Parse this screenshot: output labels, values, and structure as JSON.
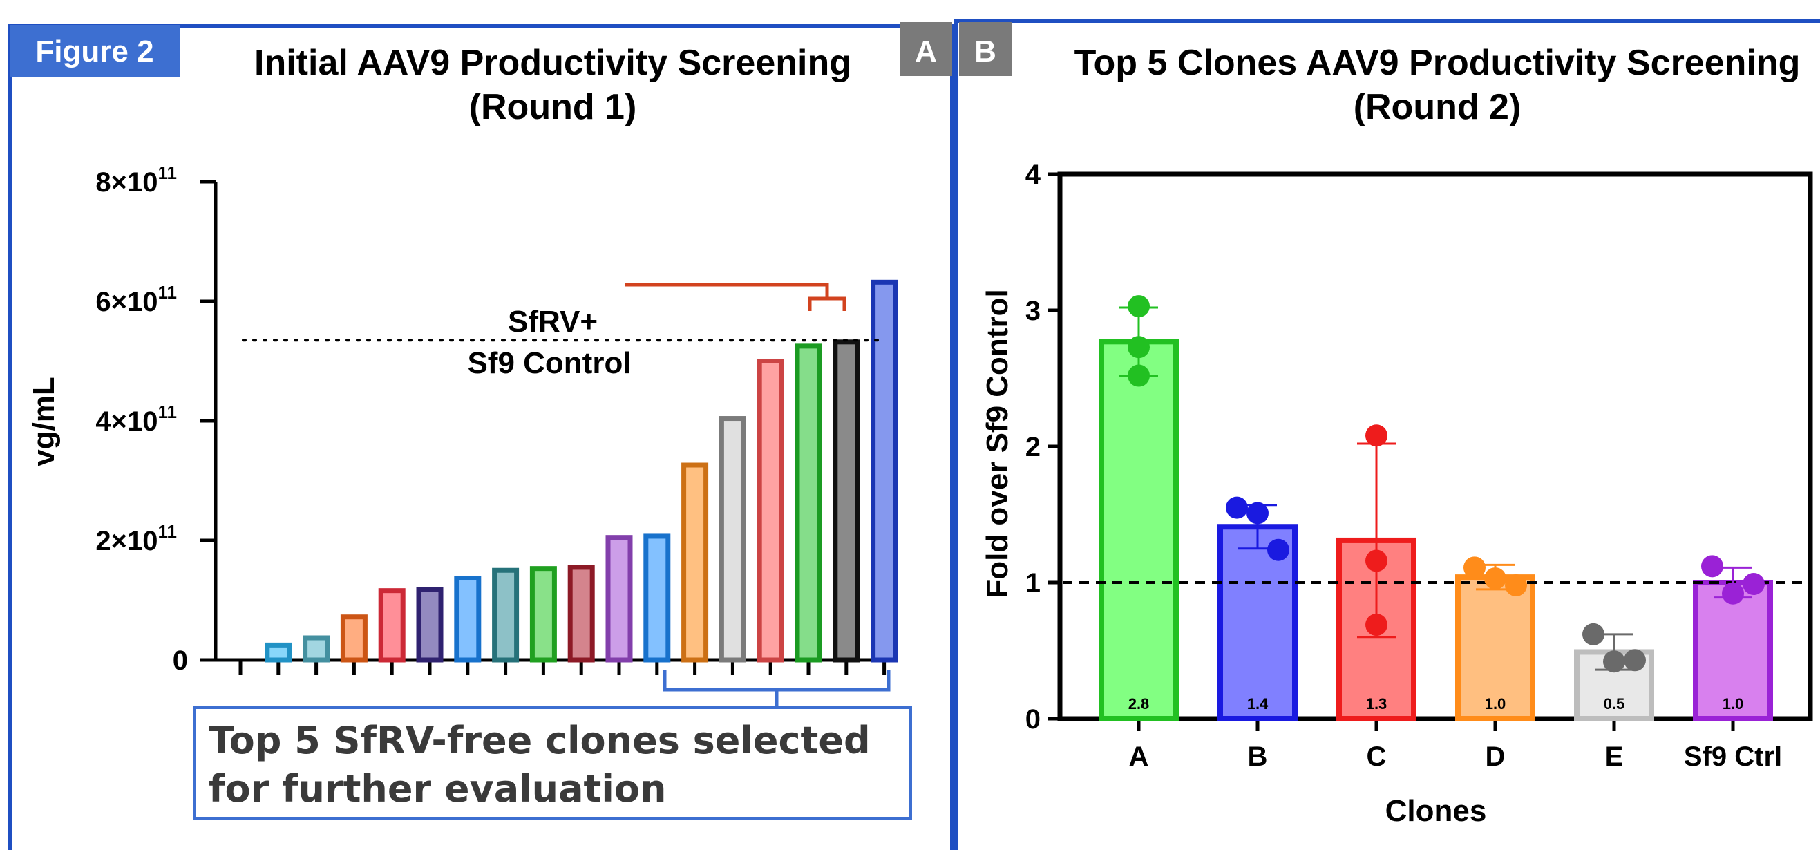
{
  "figure_label": "Figure 2",
  "panel_a_letter": "A",
  "panel_b_letter": "B",
  "callout": {
    "line1": "Top 5 SfRV-free clones selected",
    "line2": "for further evaluation"
  },
  "chart_data": [
    {
      "type": "bar",
      "title_line1": "Initial AAV9 Productivity Screening",
      "title_line2": "(Round 1)",
      "ylabel": "vg/mL",
      "ylim": [
        0,
        800000000000
      ],
      "yticks": [
        {
          "value": 0,
          "base": "0",
          "exp": ""
        },
        {
          "value": 200000000000,
          "base": "2×10",
          "exp": "11"
        },
        {
          "value": 400000000000,
          "base": "4×10",
          "exp": "11"
        },
        {
          "value": 600000000000,
          "base": "6×10",
          "exp": "11"
        },
        {
          "value": 800000000000,
          "base": "8×10",
          "exp": "11"
        }
      ],
      "reference_line": {
        "value": 535000000000,
        "label_line1": "SfRV+",
        "label_line2": "Sf9 Control"
      },
      "values": [
        0,
        25000000000,
        37000000000,
        72000000000,
        116000000000,
        118000000000,
        137000000000,
        150000000000,
        153000000000,
        155000000000,
        205000000000,
        207000000000,
        326000000000,
        404000000000,
        500000000000,
        525000000000,
        532000000000,
        632000000000
      ],
      "colors": [
        "#ffffff",
        "#29b6f6",
        "#55b4c8",
        "#ff6a1a",
        "#ff3344",
        "#3b2a8c",
        "#1e8fff",
        "#2f8f99",
        "#28c828",
        "#b02030",
        "#a34fd6",
        "#1e8fff",
        "#ff8c1a",
        "#9a9a9a",
        "#ff5555",
        "#22c22a",
        "#111111",
        "#2244e0"
      ],
      "grid": false
    },
    {
      "type": "bar",
      "title_line1": "Top 5 Clones AAV9 Productivity Screening",
      "title_line2": "(Round 2)",
      "xlabel": "Clones",
      "ylabel": "Fold over Sf9 Control",
      "ylim": [
        0,
        4
      ],
      "yticks": [
        "0",
        "1",
        "2",
        "3",
        "4"
      ],
      "reference_line": {
        "value": 1.0
      },
      "categories": [
        "A",
        "B",
        "C",
        "D",
        "E",
        "Sf9 Ctrl"
      ],
      "values": [
        2.77,
        1.41,
        1.31,
        1.04,
        0.49,
        1.0
      ],
      "value_labels": [
        "2.8",
        "1.4",
        "1.3",
        "1.0",
        "0.5",
        "1.0"
      ],
      "error": [
        0.25,
        0.16,
        0.71,
        0.09,
        0.13,
        0.11
      ],
      "points": [
        [
          3.03,
          2.73,
          2.52
        ],
        [
          1.55,
          1.51,
          1.24
        ],
        [
          2.08,
          1.16,
          0.69
        ],
        [
          1.11,
          1.03,
          0.98
        ],
        [
          0.62,
          0.42,
          0.43
        ],
        [
          1.12,
          0.92,
          0.99
        ]
      ],
      "fill_colors": [
        "#82ff82",
        "#8080ff",
        "#ff8080",
        "#ffbf80",
        "#e8e8e8",
        "#d880ee"
      ],
      "edge_colors": [
        "#22c022",
        "#1a1ae0",
        "#ee1c1c",
        "#ff8c1a",
        "#bdbdbd",
        "#9a22d6"
      ],
      "point_colors": [
        "#22c022",
        "#1a1ae0",
        "#ee1c1c",
        "#ff8c1a",
        "#6a6a6a",
        "#9a22d6"
      ],
      "grid": false
    }
  ]
}
